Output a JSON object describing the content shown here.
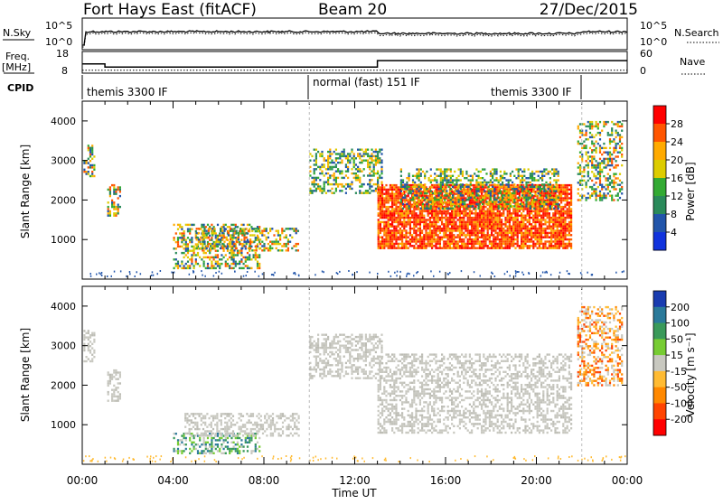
{
  "header": {
    "site": "Fort Hays East (fitACF)",
    "beam": "Beam 20",
    "date": "27/Dec/2015"
  },
  "nsky_panel": {
    "left_label": "N.Sky",
    "right_label": "N.Search",
    "left_ticks": [
      "10^5",
      "10^0"
    ],
    "right_ticks": [
      "10^5",
      "10^0"
    ]
  },
  "freq_panel": {
    "left_label_1": "Freq.",
    "left_label_2": "[MHz]",
    "right_label": "Nave",
    "left_ticks": [
      "18",
      "8"
    ],
    "right_ticks": [
      "60",
      "0"
    ],
    "freq_steps": [
      {
        "t_from": 0.0,
        "t_to": 1.0,
        "mhz": 12.3
      },
      {
        "t_from": 1.0,
        "t_to": 13.0,
        "mhz": 10.8
      },
      {
        "t_from": 13.0,
        "t_to": 24.0,
        "mhz": 13.8
      }
    ],
    "nave_level": 8
  },
  "cpid": {
    "label": "CPID",
    "segments": [
      {
        "name": "themis 3300 IF",
        "t_from": 0.0,
        "t_to": 10.0
      },
      {
        "name": "normal (fast) 151 IF",
        "t_from": 10.0,
        "t_to": 22.0
      },
      {
        "name": "themis 3300 IF",
        "t_from": 22.0,
        "t_to": 24.0
      }
    ]
  },
  "chart_data": [
    {
      "type": "heatmap",
      "panel": "power",
      "ylabel": "Slant Range [km]",
      "xlabel": "Time UT",
      "ylim": [
        0,
        4500
      ],
      "xlim": [
        0,
        24
      ],
      "yticks": [
        "1000",
        "2000",
        "3000",
        "4000"
      ],
      "xtick_labels": [
        "00:00",
        "04:00",
        "08:00",
        "12:00",
        "16:00",
        "20:00",
        "00:00"
      ],
      "colorbar": {
        "label": "Power [dB]",
        "ticks": [
          "28",
          "24",
          "20",
          "16",
          "12",
          "8",
          "4"
        ],
        "colors": [
          "#ff0000",
          "#ff5500",
          "#ffaa00",
          "#ddcc00",
          "#33aa33",
          "#2a8a5a",
          "#2255aa",
          "#1133dd"
        ]
      },
      "echo_regions": [
        {
          "t0": 0.05,
          "t1": 0.55,
          "r0": 2600,
          "r1": 3400,
          "level": "mixed"
        },
        {
          "t0": 1.1,
          "t1": 1.7,
          "r0": 1600,
          "r1": 2400,
          "level": "mixed"
        },
        {
          "t0": 4.0,
          "t1": 7.8,
          "r0": 300,
          "r1": 1400,
          "level": "mixed"
        },
        {
          "t0": 5.0,
          "t1": 9.5,
          "r0": 700,
          "r1": 1300,
          "level": "mixed"
        },
        {
          "t0": 10.0,
          "t1": 13.2,
          "r0": 2200,
          "r1": 3300,
          "level": "weak"
        },
        {
          "t0": 13.0,
          "t1": 21.5,
          "r0": 800,
          "r1": 2400,
          "level": "strong"
        },
        {
          "t0": 14.0,
          "t1": 21.0,
          "r0": 1800,
          "r1": 2800,
          "level": "weak"
        },
        {
          "t0": 21.8,
          "t1": 23.8,
          "r0": 2000,
          "r1": 4000,
          "level": "mixed"
        }
      ]
    },
    {
      "type": "heatmap",
      "panel": "velocity",
      "ylabel": "Slant Range [km]",
      "xlabel": "Time UT",
      "ylim": [
        0,
        4500
      ],
      "xlim": [
        0,
        24
      ],
      "yticks": [
        "1000",
        "2000",
        "3000",
        "4000"
      ],
      "xtick_labels": [
        "00:00",
        "04:00",
        "08:00",
        "12:00",
        "16:00",
        "20:00",
        "00:00"
      ],
      "colorbar": {
        "label": "Velocity [m s⁻¹]",
        "ticks": [
          "200",
          "100",
          "50",
          "15",
          "-15",
          "-50",
          "-100",
          "-200"
        ],
        "colors": [
          "#1a3cb0",
          "#2b7a9a",
          "#3a9a5a",
          "#77cc33",
          "#c8c8c0",
          "#ffbb33",
          "#ff8800",
          "#ff4400",
          "#ff0000"
        ]
      },
      "echo_regions": [
        {
          "t0": 0.05,
          "t1": 0.55,
          "r0": 2600,
          "r1": 3400,
          "level": "ground"
        },
        {
          "t0": 1.1,
          "t1": 1.7,
          "r0": 1600,
          "r1": 2400,
          "level": "ground"
        },
        {
          "t0": 4.0,
          "t1": 7.8,
          "r0": 300,
          "r1": 800,
          "level": "positive"
        },
        {
          "t0": 4.5,
          "t1": 9.5,
          "r0": 700,
          "r1": 1300,
          "level": "ground"
        },
        {
          "t0": 10.0,
          "t1": 13.2,
          "r0": 2200,
          "r1": 3300,
          "level": "ground"
        },
        {
          "t0": 13.0,
          "t1": 21.5,
          "r0": 800,
          "r1": 2800,
          "level": "ground"
        },
        {
          "t0": 21.8,
          "t1": 23.8,
          "r0": 2000,
          "r1": 4000,
          "level": "negative"
        }
      ]
    }
  ]
}
